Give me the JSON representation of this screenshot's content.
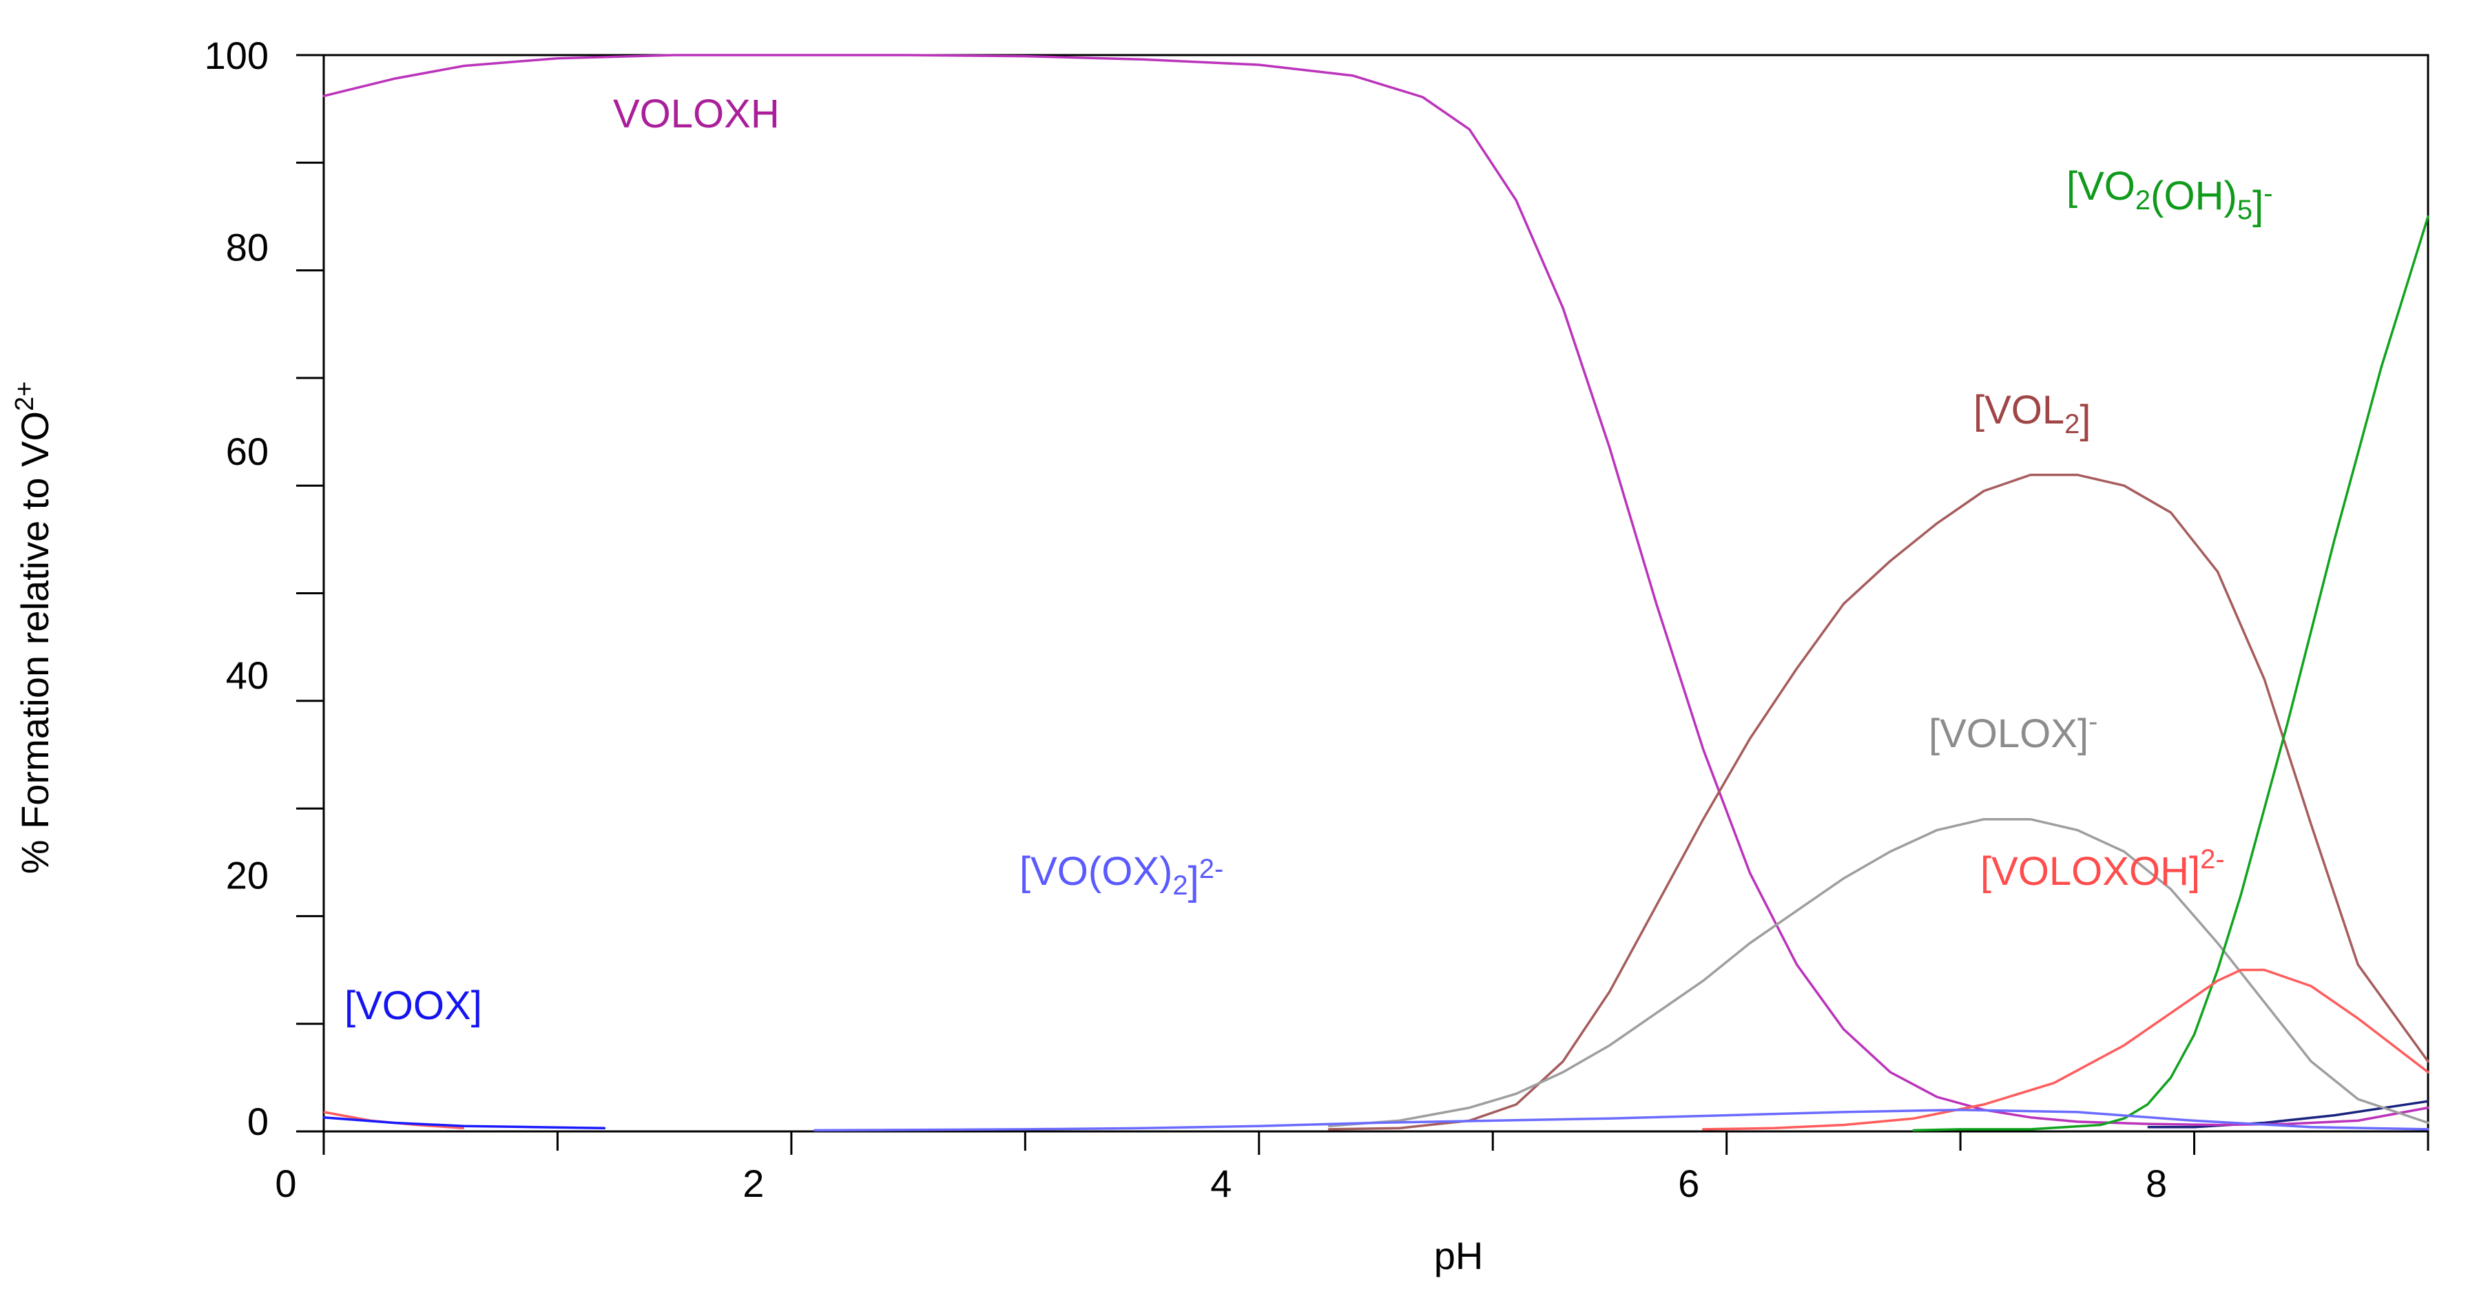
{
  "chart_data": {
    "type": "line",
    "xlabel": "pH",
    "ylabel": "% Formation relative to VO2+",
    "ylabel_parts": {
      "main": "% Formation relative to VO",
      "sup": "2+"
    },
    "xlim": [
      0,
      9
    ],
    "ylim": [
      0,
      100
    ],
    "grid": false,
    "x_ticks": [
      0,
      2,
      4,
      6,
      8
    ],
    "x_tick_labels": [
      "0",
      "2",
      "4",
      "6",
      "8"
    ],
    "y_ticks": [
      0,
      20,
      40,
      60,
      80,
      100
    ],
    "y_tick_labels": [
      "0",
      "20",
      "40",
      "60",
      "80",
      "100"
    ],
    "series": [
      {
        "name": "VOLOXH",
        "label_parts": [
          {
            "t": "VOLOXH"
          }
        ],
        "color": "#bb33bb",
        "label_color": "#aa1f99",
        "x": [
          0,
          0.3,
          0.6,
          1,
          1.5,
          2,
          2.5,
          3,
          3.5,
          4,
          4.4,
          4.7,
          4.9,
          5.1,
          5.3,
          5.5,
          5.7,
          5.9,
          6.1,
          6.3,
          6.5,
          6.7,
          6.9,
          7.1,
          7.3,
          7.5,
          7.8,
          8.1,
          8.4,
          8.7,
          9.0
        ],
        "y": [
          96.2,
          97.8,
          99.0,
          99.7,
          100,
          100,
          100,
          99.9,
          99.6,
          99.1,
          98.1,
          96.1,
          93.1,
          86.5,
          76.5,
          63.5,
          49.0,
          35.5,
          24.0,
          15.5,
          9.5,
          5.5,
          3.2,
          2.0,
          1.3,
          0.9,
          0.7,
          0.6,
          0.7,
          1.0,
          2.2
        ]
      },
      {
        "name": "[VOL2]",
        "label_parts": [
          {
            "t": "[VOL"
          },
          {
            "t": "2",
            "sub": true
          },
          {
            "t": "]"
          }
        ],
        "color": "#a65c5c",
        "label_color": "#a04545",
        "x": [
          4.3,
          4.6,
          4.9,
          5.1,
          5.3,
          5.5,
          5.7,
          5.9,
          6.1,
          6.3,
          6.5,
          6.7,
          6.9,
          7.1,
          7.3,
          7.5,
          7.7,
          7.9,
          8.1,
          8.3,
          8.5,
          8.7,
          9.0
        ],
        "y": [
          0.2,
          0.3,
          1.0,
          2.5,
          6.5,
          13.0,
          21.0,
          29.0,
          36.5,
          43.0,
          49.0,
          53.0,
          56.5,
          59.5,
          61.0,
          61.0,
          60.0,
          57.5,
          52.0,
          42.0,
          28.5,
          15.5,
          6.5
        ]
      },
      {
        "name": "[VOLOX]-",
        "label_parts": [
          {
            "t": "[VOLOX]"
          },
          {
            "t": "-",
            "sup": true
          }
        ],
        "color": "#9e9e9e",
        "label_color": "#8c8c8c",
        "x": [
          4.3,
          4.6,
          4.9,
          5.1,
          5.3,
          5.5,
          5.7,
          5.9,
          6.1,
          6.3,
          6.5,
          6.7,
          6.9,
          7.1,
          7.3,
          7.5,
          7.7,
          7.9,
          8.1,
          8.3,
          8.5,
          8.7,
          9.0
        ],
        "y": [
          0.5,
          1.0,
          2.2,
          3.5,
          5.5,
          8.0,
          11.0,
          14.0,
          17.5,
          20.5,
          23.5,
          26.0,
          28.0,
          29.0,
          29.0,
          28.0,
          26.0,
          22.5,
          17.5,
          12.0,
          6.5,
          3.0,
          0.8
        ]
      },
      {
        "name": "[VO2(OH)5]-",
        "label_parts": [
          {
            "t": "[VO"
          },
          {
            "t": "2",
            "sub": true
          },
          {
            "t": "(OH)"
          },
          {
            "t": "5",
            "sub": true
          },
          {
            "t": "]"
          },
          {
            "t": "-",
            "sup": true
          }
        ],
        "color": "#11a31e",
        "label_color": "#0f9a1a",
        "x": [
          6.8,
          7.0,
          7.3,
          7.6,
          7.7,
          7.8,
          7.9,
          8.0,
          8.1,
          8.2,
          8.3,
          8.4,
          8.5,
          8.6,
          8.7,
          8.8,
          8.9,
          9.0
        ],
        "y": [
          0.1,
          0.2,
          0.2,
          0.6,
          1.2,
          2.5,
          5.0,
          9.0,
          15.0,
          22.0,
          30.0,
          38.0,
          46.5,
          55.0,
          63.0,
          71.0,
          78.0,
          85.0
        ]
      },
      {
        "name": "[VOLOXOH]2-",
        "label_parts": [
          {
            "t": "[VOLOXOH]"
          },
          {
            "t": "2-",
            "sup": true
          }
        ],
        "color": "#ff5c5c",
        "label_color": "#ff4d4d",
        "x": [
          5.9,
          6.2,
          6.5,
          6.8,
          7.1,
          7.4,
          7.7,
          7.9,
          8.1,
          8.2,
          8.3,
          8.5,
          8.7,
          9.0
        ],
        "y": [
          0.2,
          0.3,
          0.6,
          1.2,
          2.5,
          4.5,
          8.0,
          11.0,
          14.0,
          15.0,
          15.0,
          13.5,
          10.5,
          5.5
        ]
      },
      {
        "name": "[VO(OX)2]2-",
        "label_parts": [
          {
            "t": "[VO(OX)"
          },
          {
            "t": "2",
            "sub": true
          },
          {
            "t": "]"
          },
          {
            "t": "2-",
            "sup": true
          }
        ],
        "color": "#6b6bff",
        "label_color": "#5a5aff",
        "x": [
          2.1,
          3.0,
          3.5,
          4.0,
          4.5,
          5.0,
          5.5,
          6.0,
          6.5,
          7.0,
          7.5,
          8.0,
          8.5,
          9.0
        ],
        "y": [
          0.1,
          0.2,
          0.3,
          0.5,
          0.8,
          1.0,
          1.2,
          1.5,
          1.8,
          2.0,
          1.8,
          1.0,
          0.4,
          0.2
        ]
      },
      {
        "name": "[VOOX]",
        "label_parts": [
          {
            "t": "[VOOX]"
          }
        ],
        "color": "#1a1aff",
        "label_color": "#1414f0",
        "x": [
          0,
          0.3,
          0.6,
          0.9,
          1.2
        ],
        "y": [
          1.3,
          0.8,
          0.5,
          0.4,
          0.3
        ]
      }
    ],
    "extra_segments": [
      {
        "color": "#ff5c5c",
        "x": [
          0,
          0.2,
          0.4,
          0.6
        ],
        "y": [
          1.8,
          1.0,
          0.6,
          0.3
        ]
      },
      {
        "color": "#1a237e",
        "x": [
          7.8,
          8.0,
          8.3,
          8.6,
          9.0
        ],
        "y": [
          0.4,
          0.4,
          0.8,
          1.5,
          2.8
        ]
      }
    ]
  }
}
